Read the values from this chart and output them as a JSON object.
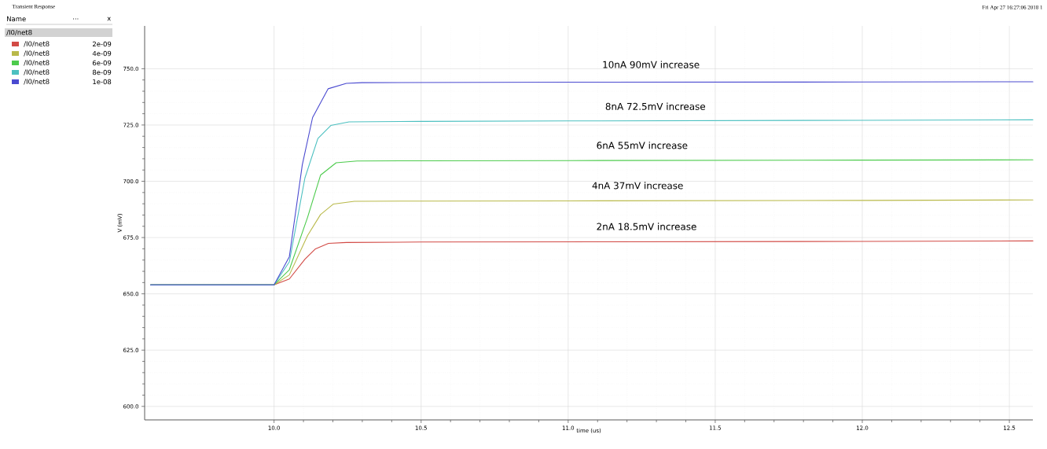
{
  "chart_data": {
    "type": "line",
    "title": "Transient Response",
    "xlabel": "time (us)",
    "ylabel": "V (mV)",
    "legend_title": "/I0/net8",
    "xlim": [
      9.56,
      12.58
    ],
    "ylim": [
      594,
      769
    ],
    "xticks": [
      {
        "value": 10.0,
        "label": "10.0"
      },
      {
        "value": 10.5,
        "label": "10.5"
      },
      {
        "value": 11.0,
        "label": "11.0"
      },
      {
        "value": 11.5,
        "label": "11.5"
      },
      {
        "value": 12.0,
        "label": "12.0"
      },
      {
        "value": 12.5,
        "label": "12.5"
      }
    ],
    "yticks": [
      {
        "value": 600,
        "label": "600.0"
      },
      {
        "value": 625,
        "label": "625.0"
      },
      {
        "value": 650,
        "label": "650.0"
      },
      {
        "value": 675,
        "label": "675.0"
      },
      {
        "value": 700,
        "label": "700.0"
      },
      {
        "value": 725,
        "label": "725.0"
      },
      {
        "value": 750,
        "label": "750.0"
      }
    ],
    "grid": true,
    "legend": "top left",
    "marker": "none",
    "line_style": "solid",
    "series": [
      {
        "name": "/I0/net8",
        "color": "#d24a45",
        "x": [
          9.58,
          10.0,
          10.052,
          10.105,
          10.141,
          10.185,
          10.246,
          10.5,
          11.0,
          12.0,
          12.58
        ],
        "values": [
          654,
          654,
          656.6,
          665.4,
          670,
          672.4,
          672.8,
          673,
          673.1,
          673.3,
          673.5
        ]
      },
      {
        "name": "/I0/net8",
        "color": "#b9b94a",
        "x": [
          9.58,
          10.0,
          10.052,
          10.114,
          10.158,
          10.202,
          10.273,
          10.5,
          11.0,
          12.0,
          12.58
        ],
        "values": [
          654,
          654,
          658.4,
          675.9,
          685.2,
          689.9,
          691.1,
          691.2,
          691.3,
          691.5,
          691.7
        ]
      },
      {
        "name": "/I0/net8",
        "color": "#4ccb4c",
        "x": [
          9.58,
          10.0,
          10.052,
          10.114,
          10.158,
          10.211,
          10.282,
          10.5,
          11.0,
          12.0,
          12.58
        ],
        "values": [
          654,
          654,
          660.7,
          684,
          702.7,
          708.2,
          709,
          709.1,
          709.2,
          709.4,
          709.5
        ]
      },
      {
        "name": "/I0/net8",
        "color": "#4cc0c0",
        "x": [
          9.58,
          10.0,
          10.052,
          10.105,
          10.149,
          10.193,
          10.255,
          10.5,
          11.0,
          12.0,
          12.58
        ],
        "values": [
          654,
          654,
          664.2,
          701.5,
          719,
          724.8,
          726.4,
          726.6,
          726.8,
          727.1,
          727.3
        ]
      },
      {
        "name": "/I0/net8",
        "color": "#4a4ad0",
        "x": [
          9.58,
          10.0,
          10.052,
          10.096,
          10.131,
          10.184,
          10.246,
          10.299,
          11.0,
          12.0,
          12.58
        ],
        "values": [
          654,
          654,
          666.5,
          707.3,
          728.3,
          741.1,
          743.5,
          743.8,
          744,
          744.1,
          744.2
        ]
      }
    ],
    "annotations": [
      "Fri Apr 27 16:27:06 2018  1",
      "Name",
      "...",
      "x",
      "2e-09",
      "4e-09",
      "6e-09",
      "8e-09",
      "1e-08",
      "10nA 90mV increase",
      "8nA 72.5mV increase",
      "6nA 55mV increase",
      "4nA 37mV increase",
      "2nA 18.5mV increase"
    ]
  }
}
